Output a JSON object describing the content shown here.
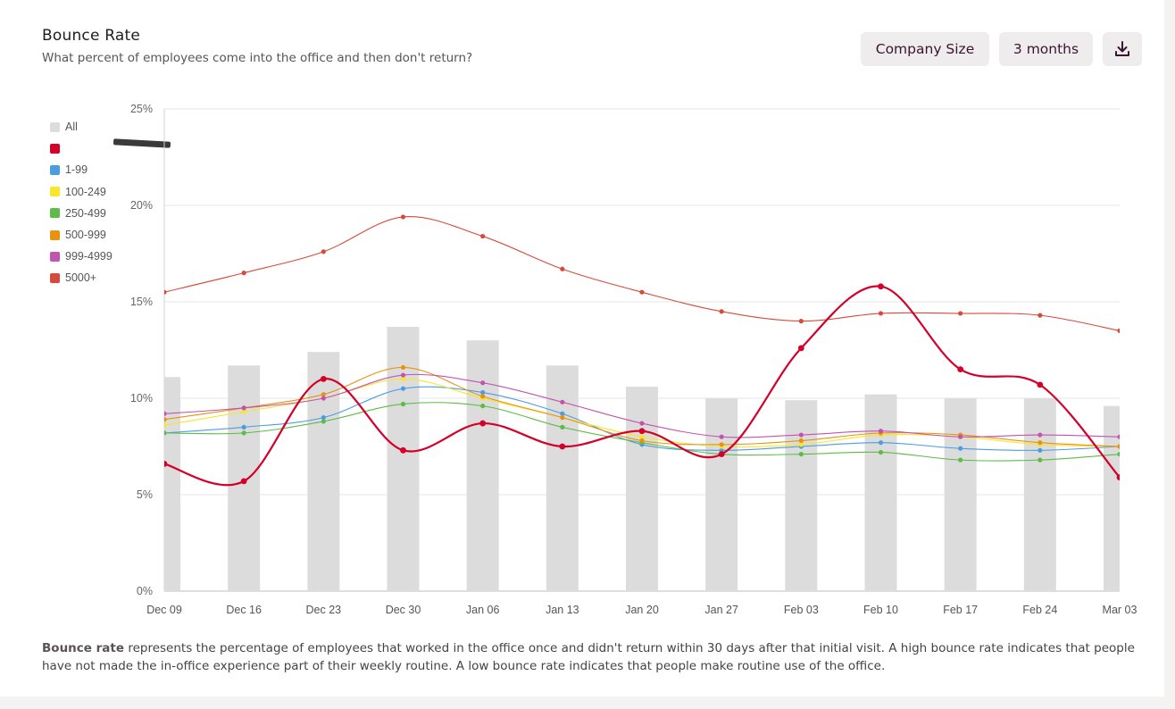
{
  "header": {
    "title": "Bounce Rate",
    "subtitle": "What percent of employees come into the office and then don't return?"
  },
  "controls": {
    "company_size_label": "Company Size",
    "range_label": "3 months",
    "download_icon": "download-icon"
  },
  "chart_data": {
    "type": "line",
    "x": [
      "Dec 09",
      "Dec 16",
      "Dec 23",
      "Dec 30",
      "Jan 06",
      "Jan 13",
      "Jan 20",
      "Jan 27",
      "Feb 03",
      "Feb 10",
      "Feb 17",
      "Feb 24",
      "Mar 03"
    ],
    "y_ticks": [
      "0%",
      "5%",
      "10%",
      "15%",
      "20%",
      "25%"
    ],
    "ylim": [
      0,
      25
    ],
    "grid": true,
    "legend_position": "left",
    "bars": {
      "name": "All",
      "color": "#dcdcdc",
      "values": [
        11.1,
        11.7,
        12.4,
        13.7,
        13.0,
        11.7,
        10.6,
        10.0,
        9.9,
        10.2,
        10.0,
        10.0,
        9.6
      ]
    },
    "series": [
      {
        "name": "",
        "redacted": true,
        "color": "#d4002a",
        "values": [
          6.6,
          5.7,
          11.0,
          7.3,
          8.7,
          7.5,
          8.3,
          7.1,
          12.6,
          15.8,
          11.5,
          10.7,
          5.9
        ]
      },
      {
        "name": "1-99",
        "color": "#4a9de3",
        "values": [
          8.2,
          8.5,
          9.0,
          10.5,
          10.3,
          9.2,
          7.6,
          7.3,
          7.5,
          7.7,
          7.4,
          7.3,
          7.5
        ]
      },
      {
        "name": "100-249",
        "color": "#f7e62a",
        "values": [
          8.6,
          9.3,
          10.0,
          11.0,
          10.0,
          9.0,
          8.0,
          7.5,
          7.6,
          8.1,
          8.0,
          7.6,
          7.5
        ]
      },
      {
        "name": "250-499",
        "color": "#5dbb46",
        "values": [
          8.2,
          8.2,
          8.8,
          9.7,
          9.6,
          8.5,
          7.7,
          7.1,
          7.1,
          7.2,
          6.8,
          6.8,
          7.1
        ]
      },
      {
        "name": "500-999",
        "color": "#e8920e",
        "values": [
          8.9,
          9.5,
          10.2,
          11.6,
          10.1,
          9.0,
          7.8,
          7.6,
          7.8,
          8.2,
          8.1,
          7.7,
          7.5
        ]
      },
      {
        "name": "999-4999",
        "color": "#c254b0",
        "values": [
          9.2,
          9.5,
          10.0,
          11.2,
          10.8,
          9.8,
          8.7,
          8.0,
          8.1,
          8.3,
          8.0,
          8.1,
          8.0
        ]
      },
      {
        "name": "5000+",
        "color": "#d9493a",
        "values": [
          15.5,
          16.5,
          17.6,
          19.4,
          18.4,
          16.7,
          15.5,
          14.5,
          14.0,
          14.4,
          14.4,
          14.3,
          13.5
        ]
      }
    ]
  },
  "footer": {
    "term": "Bounce rate",
    "text": " represents the percentage of employees that worked in the office once and didn't return within 30 days after that initial visit. A high bounce rate indicates that people have not made the in-office experience part of their weekly routine. A low bounce rate indicates that people make routine use of the office."
  }
}
